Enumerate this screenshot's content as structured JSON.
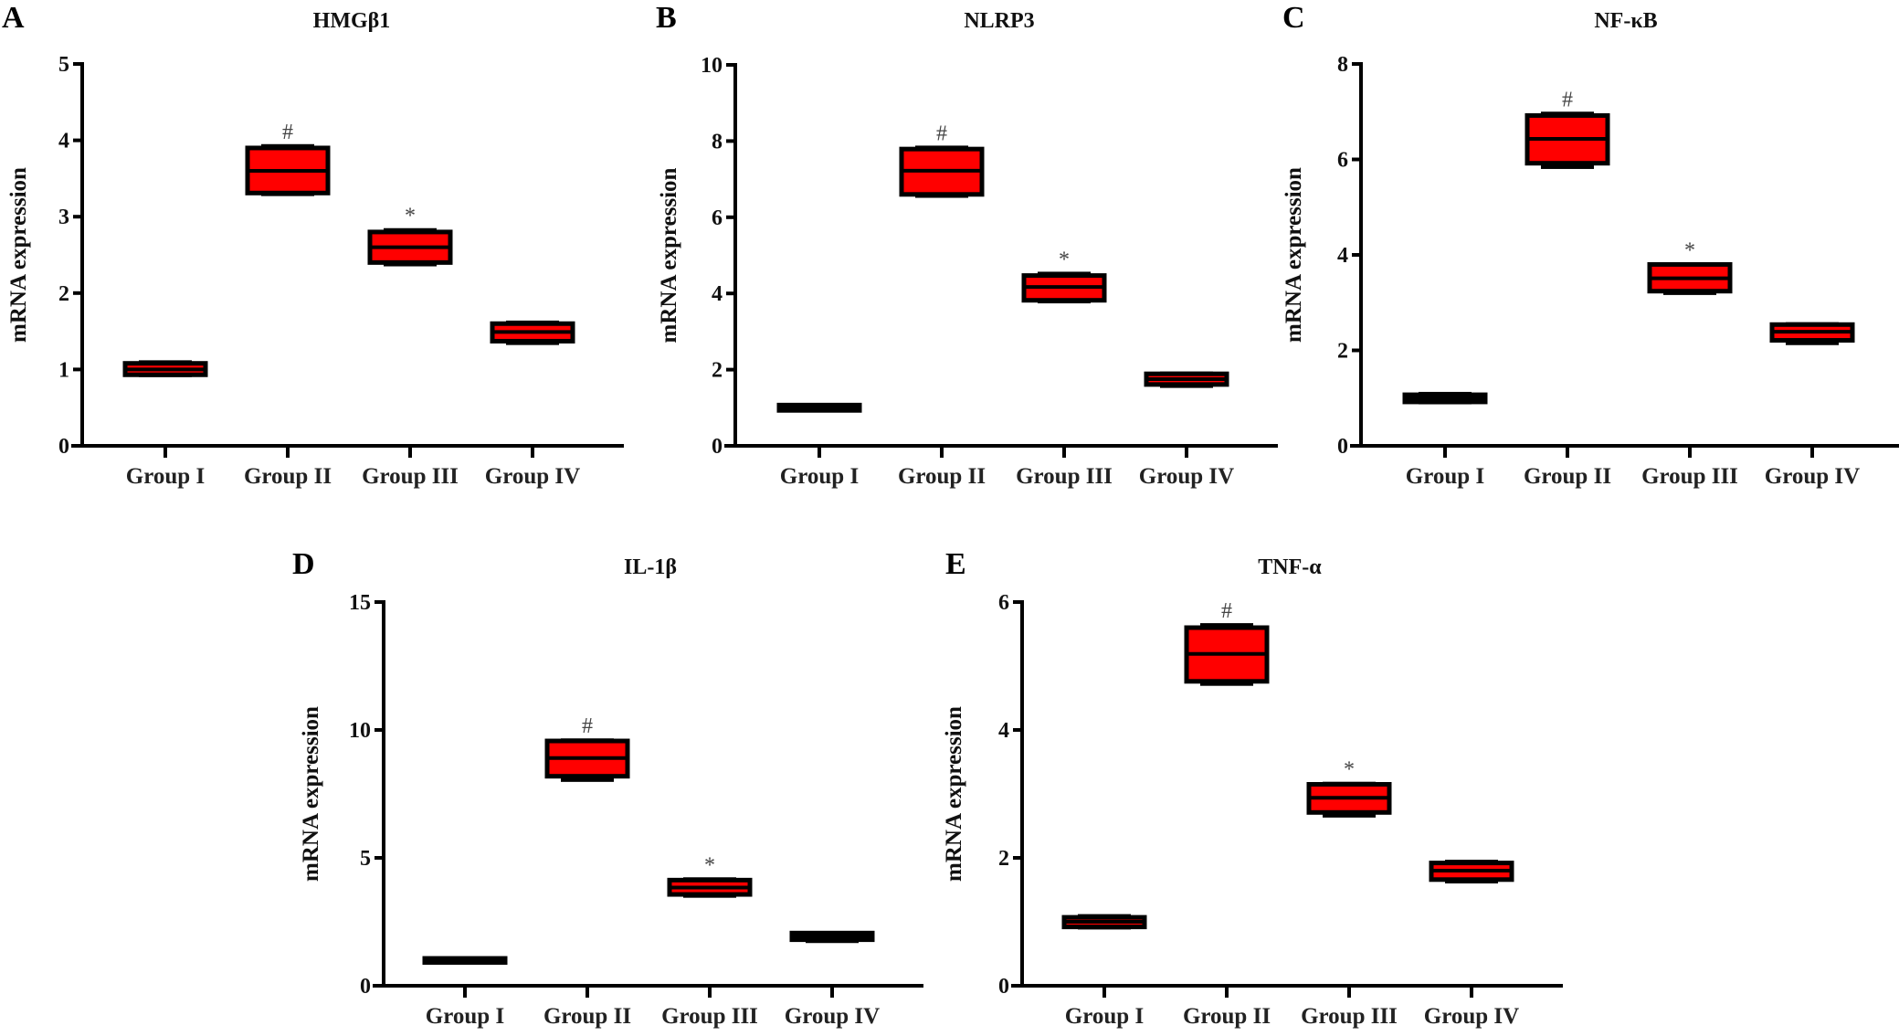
{
  "figure": {
    "colors": {
      "box_fill": "#ff0000",
      "box_stroke": "#000000",
      "axis": "#000000",
      "marker": "#444444"
    }
  },
  "chart_data": [
    {
      "type": "boxplot",
      "panel": "A",
      "title": "HMGβ1",
      "xlabel": "",
      "ylabel": "mRNA expression",
      "ylim": [
        0,
        5
      ],
      "yticks": [
        0,
        1,
        2,
        3,
        4,
        5
      ],
      "categories": [
        "Group I",
        "Group II",
        "Group III",
        "Group IV"
      ],
      "boxes": [
        {
          "min": 0.9,
          "q1": 0.93,
          "median": 1.0,
          "q3": 1.08,
          "max": 1.12,
          "marker": ""
        },
        {
          "min": 3.27,
          "q1": 3.31,
          "median": 3.6,
          "q3": 3.9,
          "max": 3.95,
          "marker": "#"
        },
        {
          "min": 2.35,
          "q1": 2.4,
          "median": 2.6,
          "q3": 2.8,
          "max": 2.85,
          "marker": "*"
        },
        {
          "min": 1.32,
          "q1": 1.37,
          "median": 1.49,
          "q3": 1.6,
          "max": 1.64,
          "marker": ""
        }
      ]
    },
    {
      "type": "boxplot",
      "panel": "B",
      "title": "NLRP3",
      "xlabel": "",
      "ylabel": "mRNA expression",
      "ylim": [
        0,
        10
      ],
      "yticks": [
        0,
        2,
        4,
        6,
        8,
        10
      ],
      "categories": [
        "Group I",
        "Group II",
        "Group III",
        "Group IV"
      ],
      "boxes": [
        {
          "min": 0.88,
          "q1": 0.93,
          "median": 1.0,
          "q3": 1.07,
          "max": 1.12,
          "marker": ""
        },
        {
          "min": 6.51,
          "q1": 6.6,
          "median": 7.22,
          "q3": 7.79,
          "max": 7.88,
          "marker": "#"
        },
        {
          "min": 3.74,
          "q1": 3.82,
          "median": 4.17,
          "q3": 4.47,
          "max": 4.57,
          "marker": "*"
        },
        {
          "min": 1.52,
          "q1": 1.61,
          "median": 1.75,
          "q3": 1.89,
          "max": 1.95,
          "marker": ""
        }
      ]
    },
    {
      "type": "boxplot",
      "panel": "C",
      "title": "NF-κB",
      "xlabel": "",
      "ylabel": "mRNA expression",
      "ylim": [
        0,
        8
      ],
      "yticks": [
        0,
        2,
        4,
        6,
        8
      ],
      "categories": [
        "Group I",
        "Group II",
        "Group III",
        "Group IV"
      ],
      "boxes": [
        {
          "min": 0.87,
          "q1": 0.92,
          "median": 1.0,
          "q3": 1.07,
          "max": 1.13,
          "marker": ""
        },
        {
          "min": 5.8,
          "q1": 5.92,
          "median": 6.43,
          "q3": 6.92,
          "max": 7.0,
          "marker": "#"
        },
        {
          "min": 3.16,
          "q1": 3.24,
          "median": 3.51,
          "q3": 3.8,
          "max": 3.84,
          "marker": "*"
        },
        {
          "min": 2.11,
          "q1": 2.21,
          "median": 2.39,
          "q3": 2.54,
          "max": 2.59,
          "marker": ""
        }
      ]
    },
    {
      "type": "boxplot",
      "panel": "D",
      "title": "IL-1β",
      "xlabel": "",
      "ylabel": "mRNA expression",
      "ylim": [
        0,
        15
      ],
      "yticks": [
        0,
        5,
        10,
        15
      ],
      "categories": [
        "Group I",
        "Group II",
        "Group III",
        "Group IV"
      ],
      "boxes": [
        {
          "min": 0.84,
          "q1": 0.91,
          "median": 1.0,
          "q3": 1.07,
          "max": 1.12,
          "marker": ""
        },
        {
          "min": 7.97,
          "q1": 8.19,
          "median": 8.9,
          "q3": 9.57,
          "max": 9.67,
          "marker": "#"
        },
        {
          "min": 3.44,
          "q1": 3.57,
          "median": 3.84,
          "q3": 4.13,
          "max": 4.24,
          "marker": "*"
        },
        {
          "min": 1.67,
          "q1": 1.8,
          "median": 1.92,
          "q3": 2.06,
          "max": 2.14,
          "marker": ""
        }
      ]
    },
    {
      "type": "boxplot",
      "panel": "E",
      "title": "TNF-α",
      "xlabel": "",
      "ylabel": "mRNA expression",
      "ylim": [
        0,
        6
      ],
      "yticks": [
        0,
        2,
        4,
        6
      ],
      "categories": [
        "Group I",
        "Group II",
        "Group III",
        "Group IV"
      ],
      "boxes": [
        {
          "min": 0.88,
          "q1": 0.92,
          "median": 1.0,
          "q3": 1.07,
          "max": 1.12,
          "marker": ""
        },
        {
          "min": 4.69,
          "q1": 4.76,
          "median": 5.19,
          "q3": 5.6,
          "max": 5.67,
          "marker": "#"
        },
        {
          "min": 2.63,
          "q1": 2.71,
          "median": 2.94,
          "q3": 3.15,
          "max": 3.19,
          "marker": "*"
        },
        {
          "min": 1.6,
          "q1": 1.66,
          "median": 1.8,
          "q3": 1.92,
          "max": 1.97,
          "marker": ""
        }
      ]
    }
  ]
}
